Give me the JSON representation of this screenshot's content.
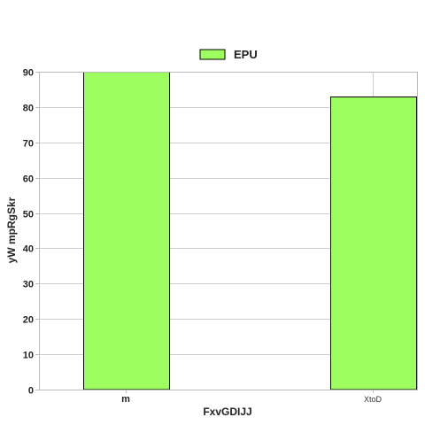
{
  "chart_data": {
    "type": "bar",
    "categories": [
      "m",
      "XtoD"
    ],
    "series": [
      {
        "name": "EPU",
        "values": [
          90,
          83
        ],
        "color": "#9dff5f"
      }
    ],
    "xlabel": "FxvGDIJJ",
    "ylabel": "yW mpRgSkr",
    "ylim": [
      0,
      90
    ],
    "yticks": [
      0,
      10,
      20,
      30,
      40,
      50,
      60,
      70,
      80,
      90
    ],
    "grid": true,
    "legend": "top-center",
    "colors": {
      "grid": "#cccccc",
      "axis": "#bbbbbb",
      "bar_edge": "#000000"
    }
  }
}
